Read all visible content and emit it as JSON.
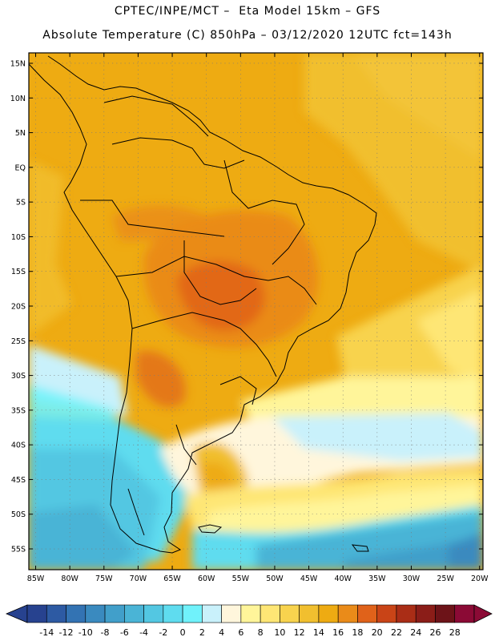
{
  "title": {
    "line1": "CPTEC/INPE/MCT –  Eta Model 15km – GFS",
    "line2": "Absolute Temperature (C) 850hPa – 03/12/2020 12UTC fct=143h"
  },
  "axes": {
    "lat_labels": [
      "15N",
      "10N",
      "5N",
      "EQ",
      "5S",
      "10S",
      "15S",
      "20S",
      "25S",
      "30S",
      "35S",
      "40S",
      "45S",
      "50S",
      "55S"
    ],
    "lat_values": [
      15,
      10,
      5,
      0,
      -5,
      -10,
      -15,
      -20,
      -25,
      -30,
      -35,
      -40,
      -45,
      -50,
      -55
    ],
    "lon_labels": [
      "85W",
      "80W",
      "75W",
      "70W",
      "65W",
      "60W",
      "55W",
      "50W",
      "45W",
      "40W",
      "35W",
      "30W",
      "25W",
      "20W"
    ],
    "lon_values": [
      -85,
      -80,
      -75,
      -70,
      -65,
      -60,
      -55,
      -50,
      -45,
      -40,
      -35,
      -30,
      -25,
      -20
    ],
    "lat_range": [
      -58,
      16.5
    ],
    "lon_range": [
      -86,
      -19.5
    ],
    "grid": true
  },
  "colorbar": {
    "labels": [
      "-14",
      "-12",
      "-10",
      "-8",
      "-6",
      "-4",
      "-2",
      "0",
      "2",
      "4",
      "6",
      "8",
      "10",
      "12",
      "14",
      "16",
      "18",
      "20",
      "22",
      "24",
      "26",
      "28"
    ],
    "colors": [
      "#27428f",
      "#2d5aa3",
      "#3373b3",
      "#3a8abf",
      "#419fca",
      "#4ab4d6",
      "#53c7e2",
      "#5fdcef",
      "#70f2fb",
      "#c9f1fb",
      "#fff6dc",
      "#fff59a",
      "#fee675",
      "#f8d34e",
      "#f1bf2f",
      "#eeab12",
      "#ea8b19",
      "#e0621a",
      "#c94417",
      "#aa2d16",
      "#8b1d18",
      "#6d1318",
      "#8b0a35"
    ],
    "min_color": "#27428f",
    "max_color": "#8b0a35"
  }
}
